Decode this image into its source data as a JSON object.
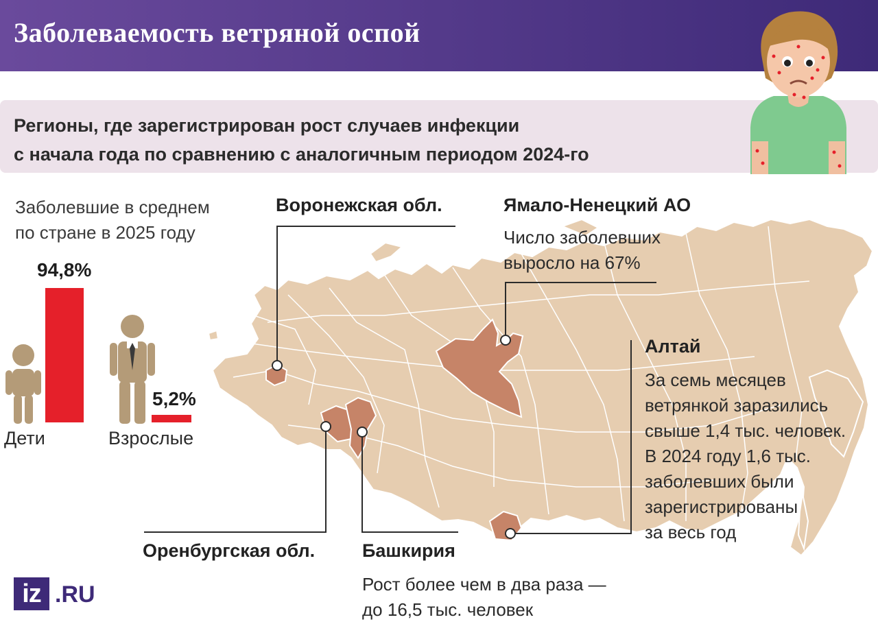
{
  "header": {
    "title": "Заболеваемость ветряной оспой"
  },
  "subtitle": {
    "line1": "Регионы, где зарегистрирован рост случаев инфекции",
    "line2": "с начала года по сравнению с аналогичным периодом 2024-го"
  },
  "stats": {
    "caption_line1": "Заболевшие в среднем",
    "caption_line2": "по стране в 2025 году",
    "groups": [
      {
        "label": "Дети",
        "value_label": "94,8%",
        "value": 94.8
      },
      {
        "label": "Взрослые",
        "value_label": "5,2%",
        "value": 5.2
      }
    ]
  },
  "regions": {
    "voronezh": {
      "name": "Воронежская обл."
    },
    "yamal": {
      "name": "Ямало-Ненецкий АО",
      "note_line1": "Число заболевших",
      "note_line2": "выросло на 67%"
    },
    "altai": {
      "name": "Алтай",
      "note_lines": [
        "За семь месяцев",
        "ветрянкой заразились",
        "свыше 1,4 тыс. человек.",
        "В 2024 году 1,6 тыс.",
        "заболевших были",
        "зарегистрированы",
        "за весь год"
      ]
    },
    "orenburg": {
      "name": "Оренбургская обл."
    },
    "bashkiria": {
      "name": "Башкирия",
      "note_line1": "Рост более чем в два раза —",
      "note_line2": "до 16,5 тыс. человек"
    }
  },
  "logo": {
    "mark": "iz",
    "domain": ".RU"
  },
  "colors": {
    "accent_red": "#e5202a",
    "header_purple": "#4e3688",
    "map_fill": "#e6cdb0",
    "highlight_region": "#c68468",
    "figure": "#b49b78"
  }
}
